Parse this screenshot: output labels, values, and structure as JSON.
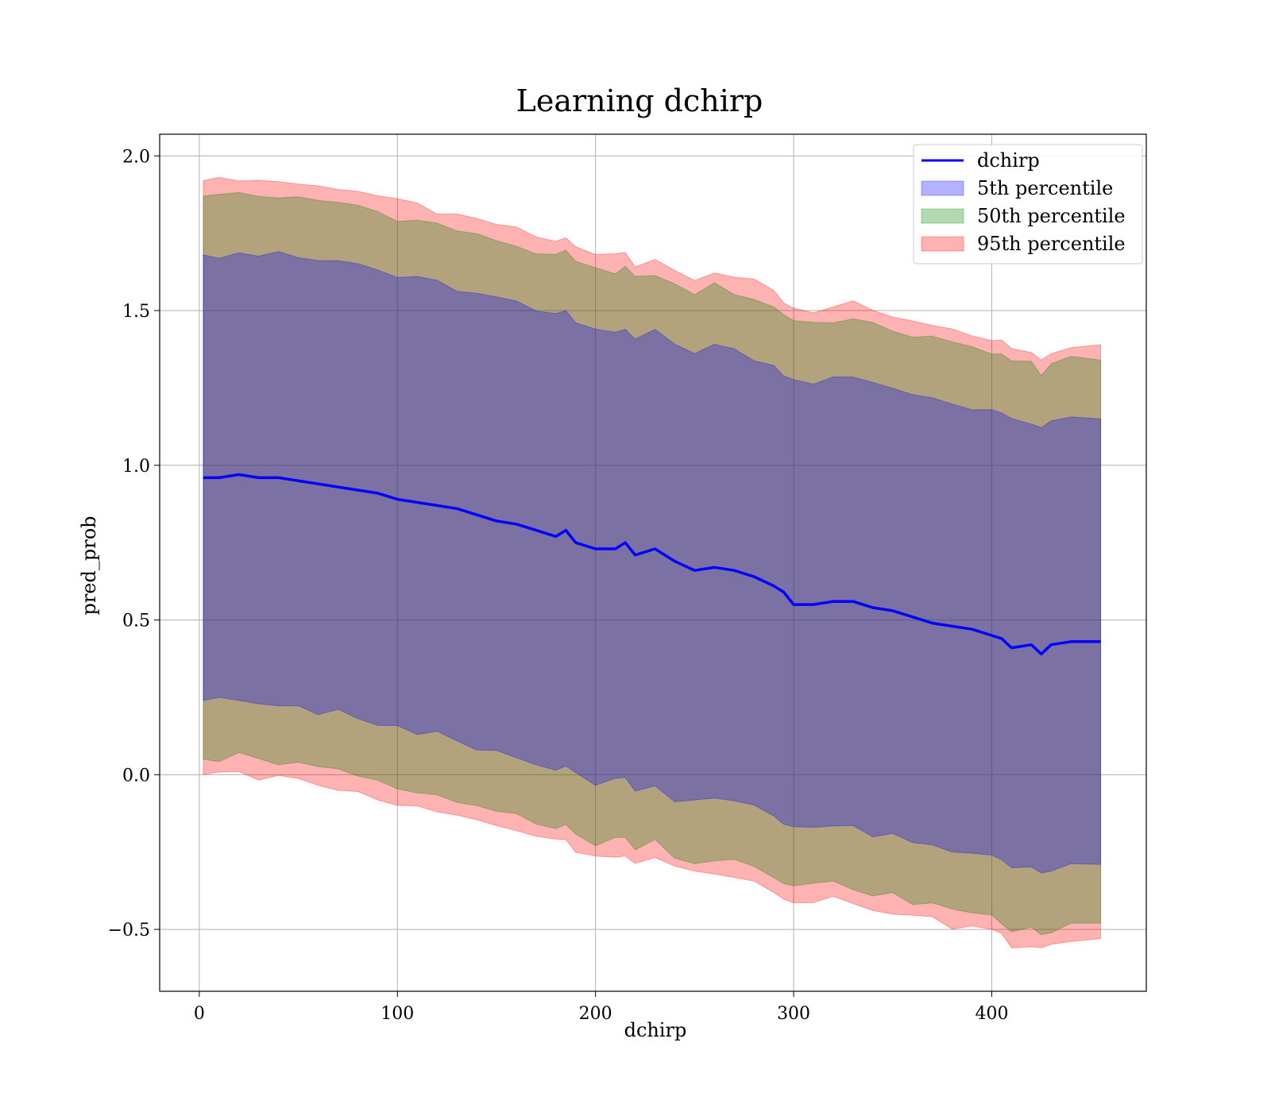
{
  "chart_data": {
    "type": "line",
    "title": "Learning dchirp",
    "xlabel": "dchirp",
    "ylabel": "pred_prob",
    "xlim": [
      -20,
      478
    ],
    "ylim": [
      -0.7,
      2.07
    ],
    "xticks": [
      0,
      100,
      200,
      300,
      400
    ],
    "yticks": [
      -0.5,
      0.0,
      0.5,
      1.0,
      1.5,
      2.0
    ],
    "xtick_labels": [
      "0",
      "100",
      "200",
      "300",
      "400"
    ],
    "ytick_labels": [
      "−0.5",
      "0.0",
      "0.5",
      "1.0",
      "1.5",
      "2.0"
    ],
    "grid": true,
    "legend_position": "top-right",
    "colors": {
      "line": "#0000ff",
      "band_5": "#0000ff",
      "band_50": "#008000",
      "band_95": "#ff0000"
    },
    "x": [
      2,
      10,
      20,
      30,
      40,
      50,
      60,
      70,
      80,
      90,
      100,
      110,
      120,
      130,
      140,
      150,
      160,
      170,
      180,
      185,
      190,
      200,
      210,
      215,
      220,
      230,
      240,
      250,
      260,
      270,
      280,
      290,
      295,
      300,
      310,
      320,
      330,
      340,
      350,
      360,
      370,
      380,
      390,
      400,
      405,
      410,
      420,
      425,
      430,
      440,
      455
    ],
    "series": [
      {
        "name": "dchirp",
        "kind": "line",
        "values": [
          0.96,
          0.96,
          0.97,
          0.96,
          0.96,
          0.95,
          0.94,
          0.93,
          0.92,
          0.91,
          0.89,
          0.88,
          0.87,
          0.86,
          0.84,
          0.82,
          0.81,
          0.79,
          0.77,
          0.79,
          0.75,
          0.73,
          0.73,
          0.75,
          0.71,
          0.73,
          0.69,
          0.66,
          0.67,
          0.66,
          0.64,
          0.61,
          0.59,
          0.55,
          0.55,
          0.56,
          0.56,
          0.54,
          0.53,
          0.51,
          0.49,
          0.48,
          0.47,
          0.45,
          0.44,
          0.41,
          0.42,
          0.39,
          0.42,
          0.43,
          0.43
        ]
      },
      {
        "name": "5th percentile",
        "kind": "band",
        "lower": [
          0.24,
          0.24,
          0.25,
          0.23,
          0.23,
          0.22,
          0.2,
          0.2,
          0.19,
          0.17,
          0.15,
          0.14,
          0.13,
          0.11,
          0.09,
          0.08,
          0.06,
          0.04,
          0.02,
          0.04,
          0.0,
          -0.03,
          -0.02,
          -0.02,
          -0.05,
          -0.03,
          -0.08,
          -0.09,
          -0.08,
          -0.09,
          -0.11,
          -0.14,
          -0.16,
          -0.17,
          -0.17,
          -0.16,
          -0.17,
          -0.19,
          -0.2,
          -0.22,
          -0.23,
          -0.25,
          -0.25,
          -0.27,
          -0.28,
          -0.31,
          -0.31,
          -0.33,
          -0.31,
          -0.29,
          -0.29
        ],
        "upper": [
          1.68,
          1.68,
          1.69,
          1.68,
          1.68,
          1.67,
          1.66,
          1.66,
          1.65,
          1.63,
          1.61,
          1.6,
          1.59,
          1.57,
          1.55,
          1.54,
          1.52,
          1.5,
          1.48,
          1.5,
          1.46,
          1.44,
          1.44,
          1.45,
          1.41,
          1.43,
          1.39,
          1.37,
          1.39,
          1.37,
          1.35,
          1.32,
          1.3,
          1.28,
          1.27,
          1.28,
          1.28,
          1.26,
          1.25,
          1.23,
          1.22,
          1.2,
          1.19,
          1.18,
          1.17,
          1.14,
          1.14,
          1.11,
          1.14,
          1.15,
          1.15
        ]
      },
      {
        "name": "50th percentile",
        "kind": "band",
        "lower": [
          0.05,
          0.05,
          0.06,
          0.04,
          0.04,
          0.03,
          0.02,
          0.01,
          0.0,
          -0.02,
          -0.04,
          -0.05,
          -0.06,
          -0.08,
          -0.1,
          -0.11,
          -0.13,
          -0.15,
          -0.17,
          -0.15,
          -0.19,
          -0.22,
          -0.21,
          -0.21,
          -0.24,
          -0.22,
          -0.26,
          -0.28,
          -0.27,
          -0.28,
          -0.3,
          -0.33,
          -0.35,
          -0.36,
          -0.36,
          -0.35,
          -0.36,
          -0.38,
          -0.39,
          -0.41,
          -0.42,
          -0.44,
          -0.44,
          -0.46,
          -0.47,
          -0.5,
          -0.5,
          -0.52,
          -0.5,
          -0.48,
          -0.48
        ],
        "upper": [
          1.87,
          1.87,
          1.88,
          1.87,
          1.87,
          1.86,
          1.85,
          1.85,
          1.84,
          1.82,
          1.8,
          1.79,
          1.78,
          1.76,
          1.74,
          1.73,
          1.71,
          1.69,
          1.67,
          1.69,
          1.65,
          1.63,
          1.63,
          1.64,
          1.6,
          1.62,
          1.58,
          1.56,
          1.58,
          1.56,
          1.54,
          1.51,
          1.49,
          1.47,
          1.46,
          1.47,
          1.47,
          1.45,
          1.44,
          1.42,
          1.41,
          1.39,
          1.38,
          1.37,
          1.36,
          1.33,
          1.33,
          1.3,
          1.33,
          1.34,
          1.34
        ]
      },
      {
        "name": "95th percentile",
        "kind": "band",
        "lower": [
          0.0,
          0.0,
          0.0,
          -0.01,
          -0.01,
          -0.02,
          -0.03,
          -0.04,
          -0.05,
          -0.07,
          -0.09,
          -0.1,
          -0.11,
          -0.13,
          -0.15,
          -0.16,
          -0.18,
          -0.2,
          -0.22,
          -0.2,
          -0.24,
          -0.26,
          -0.26,
          -0.26,
          -0.28,
          -0.26,
          -0.3,
          -0.32,
          -0.31,
          -0.32,
          -0.34,
          -0.37,
          -0.4,
          -0.41,
          -0.41,
          -0.4,
          -0.41,
          -0.43,
          -0.44,
          -0.46,
          -0.47,
          -0.49,
          -0.49,
          -0.51,
          -0.52,
          -0.55,
          -0.55,
          -0.57,
          -0.55,
          -0.53,
          -0.53
        ],
        "upper": [
          1.92,
          1.92,
          1.93,
          1.92,
          1.92,
          1.91,
          1.9,
          1.9,
          1.89,
          1.87,
          1.85,
          1.84,
          1.82,
          1.8,
          1.79,
          1.78,
          1.76,
          1.74,
          1.72,
          1.74,
          1.7,
          1.68,
          1.68,
          1.69,
          1.65,
          1.67,
          1.63,
          1.61,
          1.63,
          1.61,
          1.59,
          1.56,
          1.53,
          1.51,
          1.5,
          1.51,
          1.52,
          1.49,
          1.48,
          1.46,
          1.45,
          1.43,
          1.42,
          1.41,
          1.4,
          1.37,
          1.37,
          1.34,
          1.37,
          1.39,
          1.39
        ]
      }
    ]
  }
}
